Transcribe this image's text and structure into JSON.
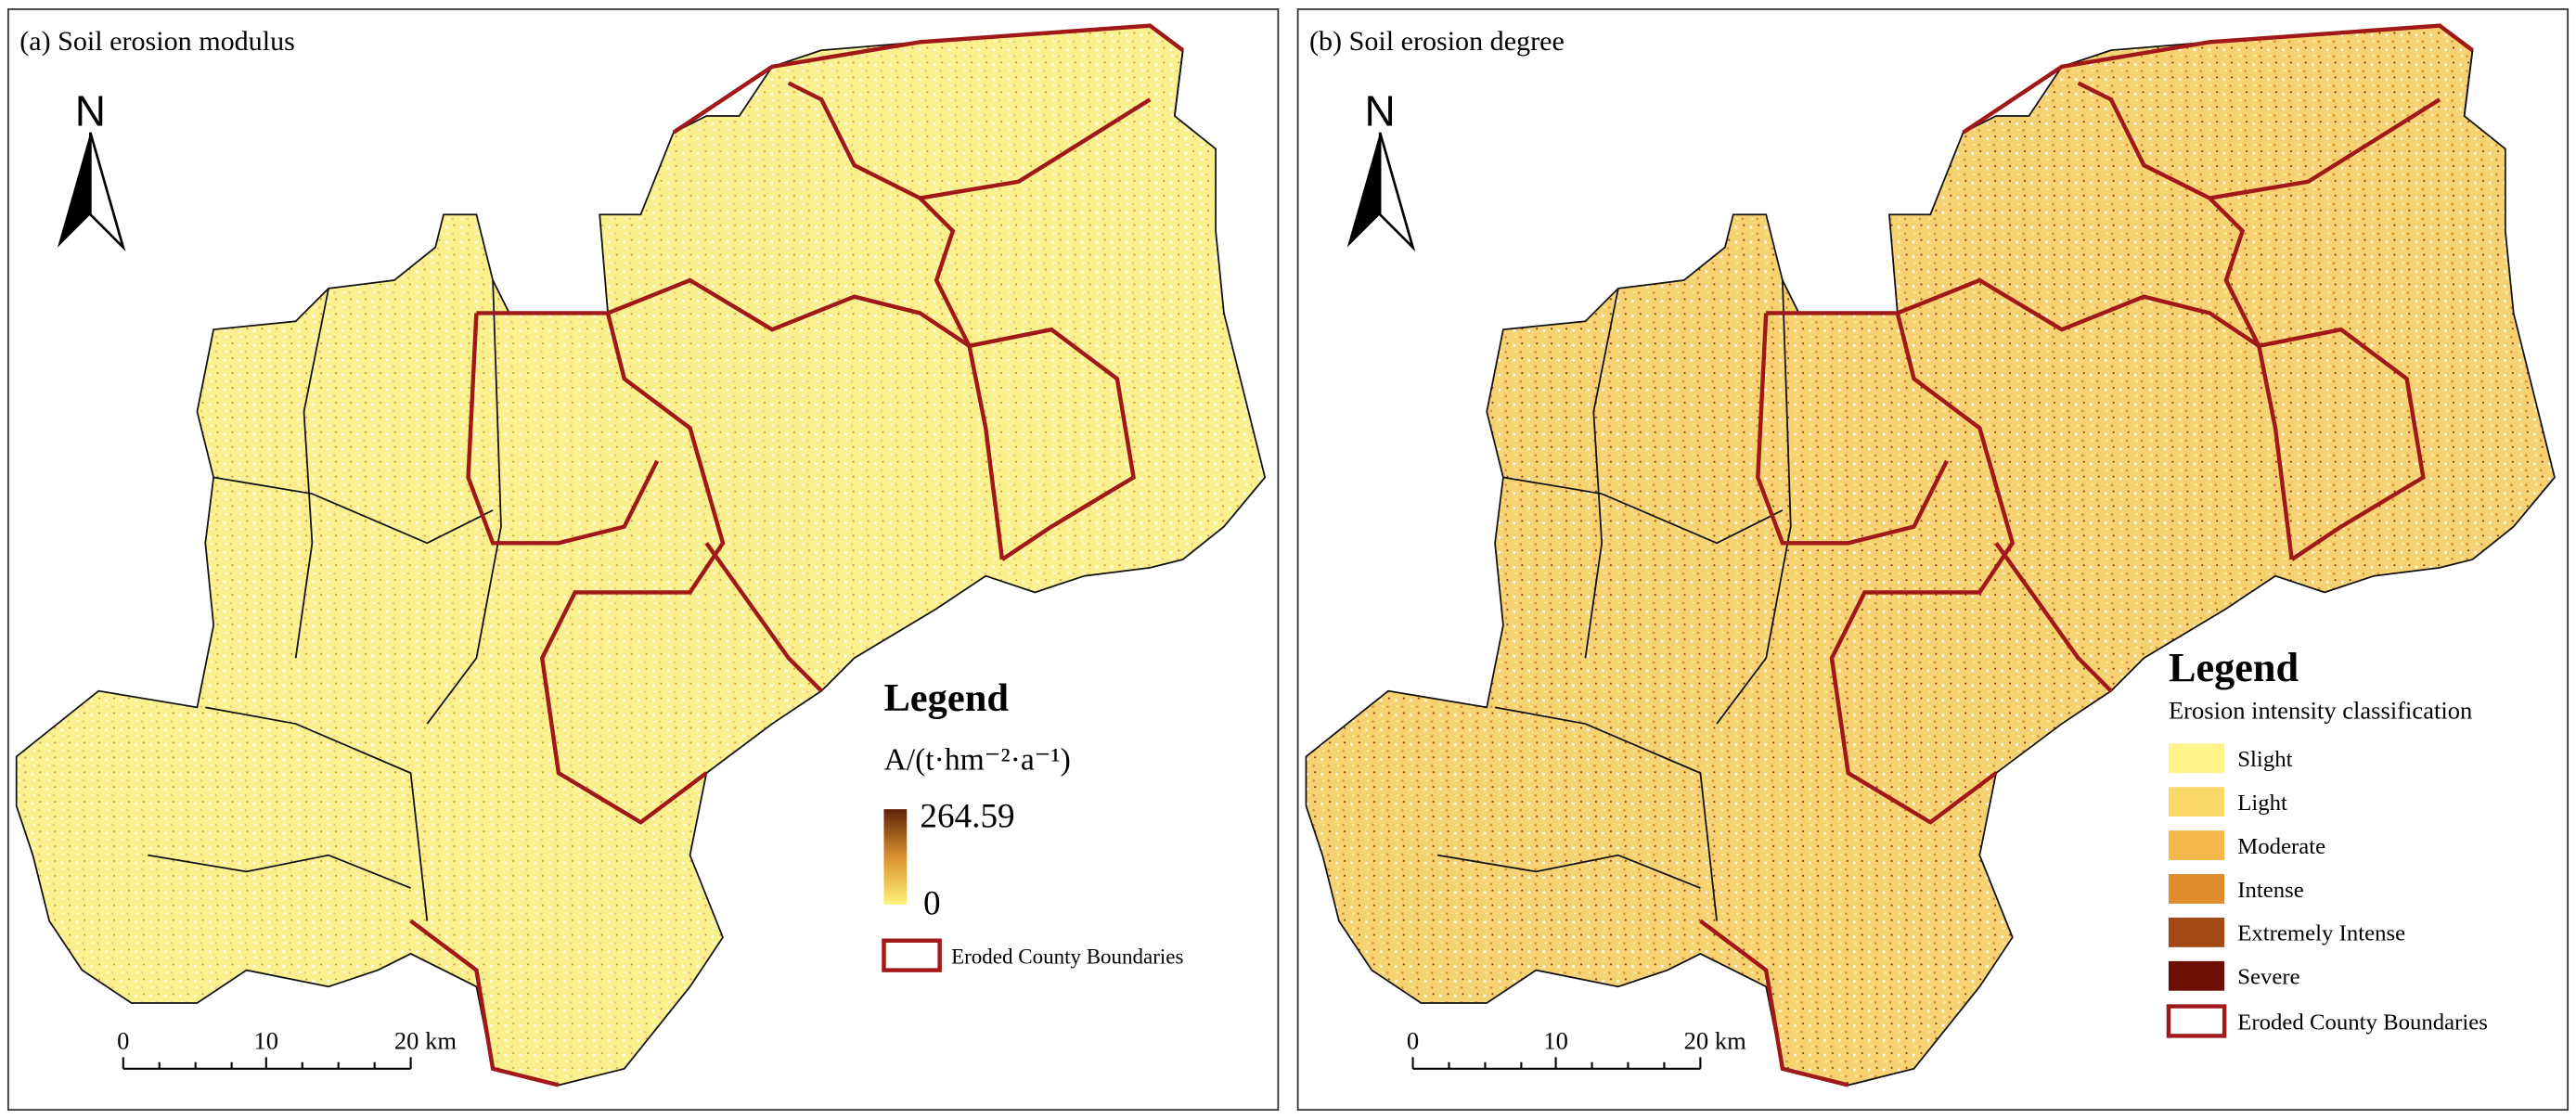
{
  "panels": [
    {
      "title": "(a) Soil erosion modulus",
      "north": "N",
      "legend": {
        "title": "Legend",
        "unit": "A/(t·hm⁻²·a⁻¹)",
        "max": "264.59",
        "min": "0",
        "boundary": "Eroded County Boundaries"
      },
      "scale": [
        "0",
        "10",
        "20 km"
      ]
    },
    {
      "title": "(b) Soil erosion degree",
      "north": "N",
      "legend": {
        "title": "Legend",
        "subtitle": "Erosion intensity classification",
        "classes": [
          {
            "label": "Slight",
            "color": "#fdf58a"
          },
          {
            "label": "Light",
            "color": "#fbd86a"
          },
          {
            "label": "Moderate",
            "color": "#f5b84a"
          },
          {
            "label": "Intense",
            "color": "#df8d2c"
          },
          {
            "label": "Extremely Intense",
            "color": "#a34a14"
          },
          {
            "label": "Severe",
            "color": "#6b0f05"
          }
        ],
        "boundary": "Eroded County Boundaries"
      },
      "scale": [
        "0",
        "10",
        "20 km"
      ]
    }
  ]
}
